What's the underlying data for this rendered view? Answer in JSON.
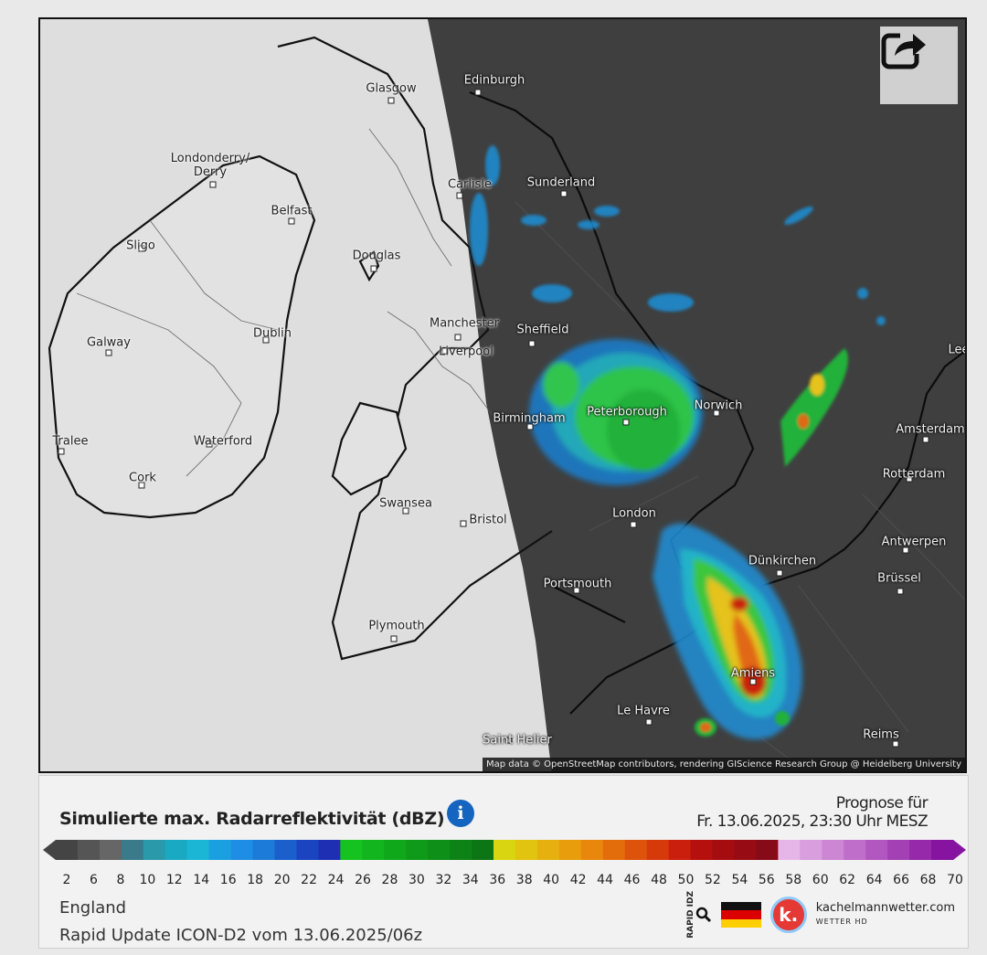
{
  "map": {
    "attribution": "Map data © OpenStreetMap contributors, rendering GIScience Research Group @ Heidelberg University",
    "share_icon": "share-icon",
    "cities": [
      {
        "key": "edinburgh",
        "name": "Edinburgh",
        "tone": "light"
      },
      {
        "key": "glasgow",
        "name": "Glasgow",
        "tone": "dark"
      },
      {
        "key": "londonderry",
        "name": "Londonderry/\nDerry",
        "tone": "dark"
      },
      {
        "key": "belfast",
        "name": "Belfast",
        "tone": "dark"
      },
      {
        "key": "sligo",
        "name": "Sligo",
        "tone": "dark"
      },
      {
        "key": "douglas",
        "name": "Douglas",
        "tone": "dark"
      },
      {
        "key": "carlisle",
        "name": "Carlisle",
        "tone": "dark"
      },
      {
        "key": "sunderland",
        "name": "Sunderland",
        "tone": "light"
      },
      {
        "key": "manchester",
        "name": "Manchester",
        "tone": "dark"
      },
      {
        "key": "liverpool",
        "name": "Liverpool",
        "tone": "dark"
      },
      {
        "key": "sheffield",
        "name": "Sheffield",
        "tone": "light"
      },
      {
        "key": "dublin",
        "name": "Dublin",
        "tone": "dark"
      },
      {
        "key": "galway",
        "name": "Galway",
        "tone": "dark"
      },
      {
        "key": "birmingham",
        "name": "Birmingham",
        "tone": "light"
      },
      {
        "key": "peterborough",
        "name": "Peterborough",
        "tone": "light"
      },
      {
        "key": "norwich",
        "name": "Norwich",
        "tone": "light"
      },
      {
        "key": "tralee",
        "name": "Tralee",
        "tone": "dark"
      },
      {
        "key": "waterford",
        "name": "Waterford",
        "tone": "dark"
      },
      {
        "key": "cork",
        "name": "Cork",
        "tone": "dark"
      },
      {
        "key": "swansea",
        "name": "Swansea",
        "tone": "dark"
      },
      {
        "key": "bristol",
        "name": "Bristol",
        "tone": "dark"
      },
      {
        "key": "london",
        "name": "London",
        "tone": "light"
      },
      {
        "key": "amsterdam",
        "name": "Amsterdam",
        "tone": "light"
      },
      {
        "key": "rotterdam",
        "name": "Rotterdam",
        "tone": "light"
      },
      {
        "key": "antwerpen",
        "name": "Antwerpen",
        "tone": "light"
      },
      {
        "key": "dunkirchen",
        "name": "Dünkirchen",
        "tone": "light"
      },
      {
        "key": "brussel",
        "name": "Brüssel",
        "tone": "light"
      },
      {
        "key": "portsmouth",
        "name": "Portsmouth",
        "tone": "light"
      },
      {
        "key": "plymouth",
        "name": "Plymouth",
        "tone": "dark"
      },
      {
        "key": "amiens",
        "name": "Amiens",
        "tone": "light"
      },
      {
        "key": "lehavre",
        "name": "Le Havre",
        "tone": "light"
      },
      {
        "key": "reims",
        "name": "Reims",
        "tone": "light"
      },
      {
        "key": "sainthelier",
        "name": "Saint Helier",
        "tone": "light"
      },
      {
        "key": "leer",
        "name": "Lee",
        "tone": "light"
      }
    ]
  },
  "legend": {
    "title": "Simulierte max. Radarreflektivität (dBZ)",
    "info_icon": "info-icon",
    "prognose_label": "Prognose für",
    "prognose_time": "Fr. 13.06.2025, 23:30 Uhr MESZ",
    "ticks": [
      "2",
      "6",
      "8",
      "10",
      "12",
      "14",
      "16",
      "18",
      "20",
      "22",
      "24",
      "26",
      "28",
      "30",
      "32",
      "34",
      "36",
      "38",
      "40",
      "42",
      "44",
      "46",
      "48",
      "50",
      "52",
      "54",
      "56",
      "58",
      "60",
      "62",
      "64",
      "66",
      "68",
      "70"
    ],
    "colors": [
      "#444",
      "#555",
      "#666",
      "#3a7a8a",
      "#2a9aab",
      "#1aa9c2",
      "#1bb6d6",
      "#1aa0e0",
      "#1e8ee4",
      "#1c7ad8",
      "#1a5fcc",
      "#1a44c0",
      "#1f2fb4",
      "#15c21f",
      "#12b51d",
      "#10a81b",
      "#0f9b19",
      "#0e8f17",
      "#0d8216",
      "#0c7614",
      "#d9d611",
      "#e0c40f",
      "#e6b10e",
      "#e89d0c",
      "#e8870b",
      "#e46d0b",
      "#de530b",
      "#d63a0b",
      "#c91f0c",
      "#b5100d",
      "#a50c10",
      "#960b14",
      "#870a18",
      "#e6b6e8",
      "#d89ede",
      "#cc86d4",
      "#bf6ec9",
      "#b257bf",
      "#a340b4",
      "#9529aa",
      "#8614a0"
    ],
    "region": "England",
    "model": "Rapid Update ICON-D2 vom 13.06.2025/06z",
    "rapid_label": "RAPID IDZ",
    "brand_name": "kachelmannwetter.com",
    "brand_sub": "WETTER HD",
    "brand_logo_letter": "k."
  }
}
